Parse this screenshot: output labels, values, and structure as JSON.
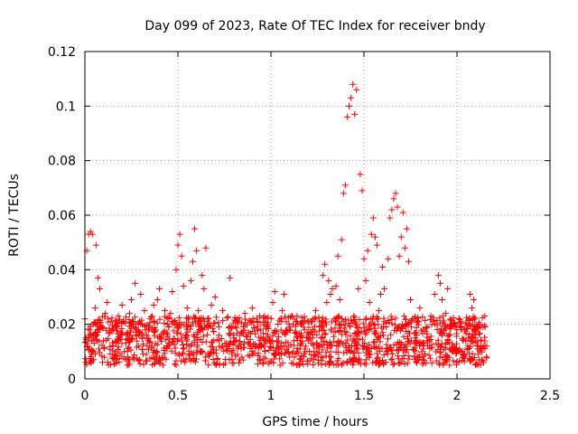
{
  "chart_data": {
    "type": "scatter",
    "title": "Day 099 of 2023, Rate Of TEC Index for receiver bndy",
    "xlabel": "GPS time / hours",
    "ylabel": "ROTI / TECUs",
    "xlim": [
      0,
      2.5
    ],
    "ylim": [
      0,
      0.12
    ],
    "grid": true,
    "marker": "+",
    "color": "#ff0000",
    "x_ticks": [
      "0",
      "0.5",
      "1",
      "1.5",
      "2",
      "2.5"
    ],
    "y_ticks": [
      "0",
      "0.02",
      "0.04",
      "0.06",
      "0.08",
      "0.1",
      "0.12"
    ],
    "x_tick_values": [
      0,
      0.5,
      1,
      1.5,
      2,
      2.5
    ],
    "y_tick_values": [
      0,
      0.02,
      0.04,
      0.06,
      0.08,
      0.1,
      0.12
    ],
    "series": [
      {
        "points": [
          [
            0.0,
            0.022
          ],
          [
            0.005,
            0.015
          ],
          [
            0.01,
            0.047
          ],
          [
            0.015,
            0.012
          ],
          [
            0.02,
            0.053
          ],
          [
            0.025,
            0.018
          ],
          [
            0.03,
            0.054
          ],
          [
            0.035,
            0.009
          ],
          [
            0.04,
            0.053
          ],
          [
            0.045,
            0.02
          ],
          [
            0.05,
            0.013
          ],
          [
            0.055,
            0.026
          ],
          [
            0.06,
            0.049
          ],
          [
            0.065,
            0.016
          ],
          [
            0.07,
            0.037
          ],
          [
            0.075,
            0.011
          ],
          [
            0.08,
            0.033
          ],
          [
            0.09,
            0.019
          ],
          [
            0.1,
            0.014
          ],
          [
            0.11,
            0.024
          ],
          [
            0.12,
            0.028
          ],
          [
            0.13,
            0.017
          ],
          [
            0.14,
            0.021
          ],
          [
            0.15,
            0.012
          ],
          [
            0.16,
            0.009
          ],
          [
            0.17,
            0.019
          ],
          [
            0.18,
            0.023
          ],
          [
            0.19,
            0.016
          ],
          [
            0.2,
            0.027
          ],
          [
            0.21,
            0.021
          ],
          [
            0.22,
            0.013
          ],
          [
            0.23,
            0.008
          ],
          [
            0.24,
            0.024
          ],
          [
            0.25,
            0.029
          ],
          [
            0.26,
            0.021
          ],
          [
            0.27,
            0.035
          ],
          [
            0.28,
            0.018
          ],
          [
            0.29,
            0.012
          ],
          [
            0.3,
            0.031
          ],
          [
            0.31,
            0.016
          ],
          [
            0.32,
            0.025
          ],
          [
            0.33,
            0.009
          ],
          [
            0.34,
            0.014
          ],
          [
            0.35,
            0.022
          ],
          [
            0.36,
            0.012
          ],
          [
            0.37,
            0.027
          ],
          [
            0.38,
            0.018
          ],
          [
            0.39,
            0.029
          ],
          [
            0.4,
            0.033
          ],
          [
            0.41,
            0.015
          ],
          [
            0.42,
            0.005
          ],
          [
            0.43,
            0.025
          ],
          [
            0.44,
            0.011
          ],
          [
            0.45,
            0.019
          ],
          [
            0.46,
            0.024
          ],
          [
            0.47,
            0.032
          ],
          [
            0.48,
            0.021
          ],
          [
            0.49,
            0.04
          ],
          [
            0.5,
            0.049
          ],
          [
            0.51,
            0.053
          ],
          [
            0.52,
            0.045
          ],
          [
            0.53,
            0.034
          ],
          [
            0.54,
            0.016
          ],
          [
            0.55,
            0.026
          ],
          [
            0.56,
            0.012
          ],
          [
            0.57,
            0.036
          ],
          [
            0.58,
            0.043
          ],
          [
            0.59,
            0.055
          ],
          [
            0.6,
            0.047
          ],
          [
            0.61,
            0.025
          ],
          [
            0.62,
            0.018
          ],
          [
            0.63,
            0.038
          ],
          [
            0.64,
            0.033
          ],
          [
            0.65,
            0.048
          ],
          [
            0.66,
            0.022
          ],
          [
            0.67,
            0.009
          ],
          [
            0.68,
            0.027
          ],
          [
            0.69,
            0.014
          ],
          [
            0.7,
            0.03
          ],
          [
            0.72,
            0.019
          ],
          [
            0.74,
            0.025
          ],
          [
            0.76,
            0.013
          ],
          [
            0.78,
            0.037
          ],
          [
            0.8,
            0.015
          ],
          [
            0.82,
            0.021
          ],
          [
            0.84,
            0.011
          ],
          [
            0.86,
            0.024
          ],
          [
            0.88,
            0.017
          ],
          [
            0.9,
            0.026
          ],
          [
            0.92,
            0.012
          ],
          [
            0.94,
            0.023
          ],
          [
            0.96,
            0.015
          ],
          [
            0.98,
            0.019
          ],
          [
            1.0,
            0.013
          ],
          [
            1.01,
            0.028
          ],
          [
            1.02,
            0.032
          ],
          [
            1.04,
            0.011
          ],
          [
            1.06,
            0.025
          ],
          [
            1.07,
            0.031
          ],
          [
            1.08,
            0.017
          ],
          [
            1.1,
            0.019
          ],
          [
            1.12,
            0.01
          ],
          [
            1.14,
            0.023
          ],
          [
            1.16,
            0.013
          ],
          [
            1.18,
            0.018
          ],
          [
            1.2,
            0.014
          ],
          [
            1.22,
            0.021
          ],
          [
            1.24,
            0.025
          ],
          [
            1.26,
            0.012
          ],
          [
            1.28,
            0.038
          ],
          [
            1.29,
            0.042
          ],
          [
            1.3,
            0.028
          ],
          [
            1.31,
            0.036
          ],
          [
            1.32,
            0.031
          ],
          [
            1.33,
            0.033
          ],
          [
            1.34,
            0.022
          ],
          [
            1.35,
            0.034
          ],
          [
            1.36,
            0.045
          ],
          [
            1.37,
            0.029
          ],
          [
            1.38,
            0.051
          ],
          [
            1.39,
            0.068
          ],
          [
            1.4,
            0.071
          ],
          [
            1.41,
            0.096
          ],
          [
            1.42,
            0.1
          ],
          [
            1.43,
            0.103
          ],
          [
            1.44,
            0.108
          ],
          [
            1.45,
            0.097
          ],
          [
            1.46,
            0.106
          ],
          [
            1.47,
            0.033
          ],
          [
            1.48,
            0.075
          ],
          [
            1.49,
            0.069
          ],
          [
            1.5,
            0.044
          ],
          [
            1.51,
            0.036
          ],
          [
            1.52,
            0.047
          ],
          [
            1.53,
            0.028
          ],
          [
            1.54,
            0.053
          ],
          [
            1.55,
            0.059
          ],
          [
            1.56,
            0.052
          ],
          [
            1.57,
            0.049
          ],
          [
            1.58,
            0.025
          ],
          [
            1.59,
            0.031
          ],
          [
            1.6,
            0.041
          ],
          [
            1.61,
            0.033
          ],
          [
            1.62,
            0.019
          ],
          [
            1.63,
            0.044
          ],
          [
            1.64,
            0.059
          ],
          [
            1.65,
            0.062
          ],
          [
            1.66,
            0.066
          ],
          [
            1.67,
            0.068
          ],
          [
            1.68,
            0.063
          ],
          [
            1.69,
            0.045
          ],
          [
            1.7,
            0.052
          ],
          [
            1.71,
            0.061
          ],
          [
            1.72,
            0.048
          ],
          [
            1.73,
            0.055
          ],
          [
            1.74,
            0.043
          ],
          [
            1.75,
            0.029
          ],
          [
            1.76,
            0.022
          ],
          [
            1.78,
            0.017
          ],
          [
            1.8,
            0.026
          ],
          [
            1.82,
            0.013
          ],
          [
            1.84,
            0.019
          ],
          [
            1.86,
            0.023
          ],
          [
            1.88,
            0.031
          ],
          [
            1.9,
            0.038
          ],
          [
            1.91,
            0.035
          ],
          [
            1.92,
            0.029
          ],
          [
            1.94,
            0.024
          ],
          [
            1.95,
            0.033
          ],
          [
            1.96,
            0.005
          ],
          [
            1.98,
            0.012
          ],
          [
            2.0,
            0.018
          ],
          [
            2.02,
            0.021
          ],
          [
            2.04,
            0.009
          ],
          [
            2.06,
            0.015
          ],
          [
            2.07,
            0.031
          ],
          [
            2.08,
            0.026
          ],
          [
            2.09,
            0.029
          ],
          [
            2.1,
            0.018
          ],
          [
            2.11,
            0.011
          ],
          [
            2.12,
            0.007
          ],
          [
            2.13,
            0.014
          ],
          [
            2.14,
            0.019
          ],
          [
            2.15,
            0.023
          ],
          [
            2.16,
            0.012
          ]
        ]
      }
    ],
    "background_band": {
      "x_range": [
        0,
        2.16
      ],
      "y_range": [
        0.005,
        0.023
      ]
    }
  }
}
